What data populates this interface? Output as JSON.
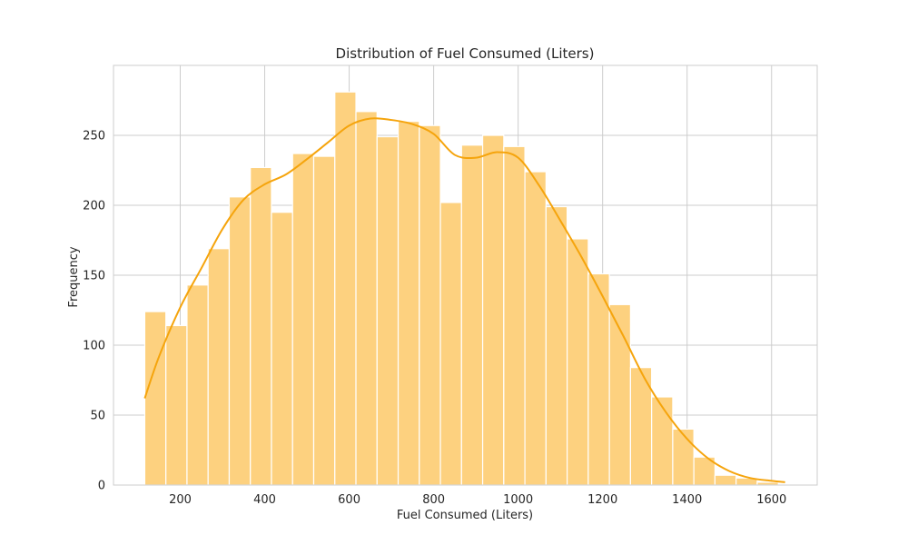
{
  "chart_data": {
    "type": "bar",
    "title": "Distribution of Fuel Consumed (Liters)",
    "xlabel": "Fuel Consumed (Liters)",
    "ylabel": "Frequency",
    "xlim": [
      42,
      1708
    ],
    "ylim": [
      0,
      300
    ],
    "xticks": [
      200,
      400,
      600,
      800,
      1000,
      1200,
      1400,
      1600
    ],
    "yticks": [
      0,
      50,
      100,
      150,
      200,
      250
    ],
    "grid": true,
    "bin_edges": [
      116,
      166,
      216,
      266,
      316,
      366,
      416,
      466,
      516,
      566,
      616,
      666,
      716,
      766,
      816,
      866,
      916,
      966,
      1016,
      1066,
      1116,
      1166,
      1216,
      1266,
      1316,
      1366,
      1416,
      1466,
      1516,
      1566,
      1616
    ],
    "values": [
      124,
      114,
      143,
      169,
      206,
      227,
      195,
      237,
      235,
      281,
      267,
      249,
      260,
      257,
      202,
      243,
      250,
      242,
      224,
      199,
      176,
      151,
      129,
      84,
      63,
      40,
      20,
      7,
      5,
      2
    ],
    "kde": {
      "x": [
        116,
        150,
        200,
        250,
        300,
        350,
        400,
        450,
        500,
        550,
        600,
        650,
        700,
        750,
        800,
        850,
        900,
        950,
        1000,
        1050,
        1100,
        1150,
        1200,
        1250,
        1300,
        1350,
        1400,
        1450,
        1500,
        1550,
        1600,
        1632
      ],
      "y": [
        62,
        92,
        127,
        155,
        183,
        204,
        215,
        222,
        233,
        245,
        257,
        262,
        261,
        258,
        251,
        236,
        234,
        238,
        234,
        214,
        189,
        163,
        135,
        106,
        76,
        52,
        33,
        19,
        10,
        5,
        3,
        2
      ]
    },
    "colors": {
      "bar_fill": "#fdd17f",
      "kde_line": "#f5a40c"
    }
  }
}
